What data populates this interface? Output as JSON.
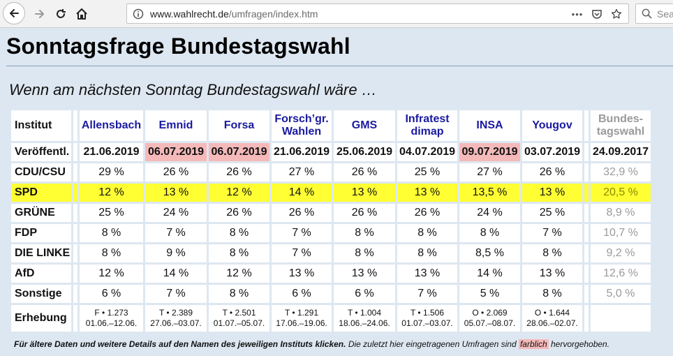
{
  "browser": {
    "url_host": "www.wahlrecht.de",
    "url_path": "/umfragen/index.htm",
    "search_placeholder": "Sea",
    "more_label": "•••"
  },
  "page": {
    "title": "Sonntagsfrage Bundestagswahl",
    "subtitle": "Wenn am nächsten Sonntag Bundestagswahl wäre …"
  },
  "table": {
    "header_label": "Institut",
    "institutes": [
      {
        "name_line1": "Allensbach",
        "name_line2": ""
      },
      {
        "name_line1": "Emnid",
        "name_line2": ""
      },
      {
        "name_line1": "Forsa",
        "name_line2": ""
      },
      {
        "name_line1": "Forsch’gr.",
        "name_line2": "Wahlen"
      },
      {
        "name_line1": "GMS",
        "name_line2": ""
      },
      {
        "name_line1": "Infratest",
        "name_line2": "dimap"
      },
      {
        "name_line1": "INSA",
        "name_line2": ""
      },
      {
        "name_line1": "Yougov",
        "name_line2": ""
      }
    ],
    "bundestagswahl_line1": "Bundes-",
    "bundestagswahl_line2": "tagswahl",
    "published_label": "Veröffentl.",
    "published_dates": [
      "21.06.2019",
      "06.07.2019",
      "06.07.2019",
      "21.06.2019",
      "25.06.2019",
      "04.07.2019",
      "09.07.2019",
      "03.07.2019"
    ],
    "published_highlight": [
      false,
      true,
      true,
      false,
      false,
      false,
      true,
      false
    ],
    "election_date": "24.09.2017",
    "parties": [
      {
        "name": "CDU/CSU",
        "values": [
          "29 %",
          "26 %",
          "26 %",
          "27 %",
          "26 %",
          "25 %",
          "27 %",
          "26 %"
        ],
        "election": "32,9 %"
      },
      {
        "name": "SPD",
        "values": [
          "12 %",
          "13 %",
          "12 %",
          "14 %",
          "13 %",
          "13 %",
          "13,5 %",
          "13 %"
        ],
        "election": "20,5 %"
      },
      {
        "name": "GRÜNE",
        "values": [
          "25 %",
          "24 %",
          "26 %",
          "26 %",
          "26 %",
          "26 %",
          "24 %",
          "25 %"
        ],
        "election": "8,9 %"
      },
      {
        "name": "FDP",
        "values": [
          "8 %",
          "7 %",
          "8 %",
          "7 %",
          "8 %",
          "8 %",
          "8 %",
          "7 %"
        ],
        "election": "10,7 %"
      },
      {
        "name": "DIE LINKE",
        "values": [
          "8 %",
          "9 %",
          "8 %",
          "7 %",
          "8 %",
          "8 %",
          "8,5 %",
          "8 %"
        ],
        "election": "9,2 %"
      },
      {
        "name": "AfD",
        "values": [
          "12 %",
          "14 %",
          "12 %",
          "13 %",
          "13 %",
          "13 %",
          "14 %",
          "13 %"
        ],
        "election": "12,6 %"
      },
      {
        "name": "Sonstige",
        "values": [
          "6 %",
          "7 %",
          "8 %",
          "6 %",
          "6 %",
          "7 %",
          "5 %",
          "8 %"
        ],
        "election": "5,0 %"
      }
    ],
    "survey_label": "Erhebung",
    "surveys": [
      {
        "line1": "F • 1.273",
        "line2": "01.06.–12.06."
      },
      {
        "line1": "T • 2.389",
        "line2": "27.06.–03.07."
      },
      {
        "line1": "T • 2.501",
        "line2": "01.07.–05.07."
      },
      {
        "line1": "T • 1.291",
        "line2": "17.06.–19.06."
      },
      {
        "line1": "T • 1.004",
        "line2": "18.06.–24.06."
      },
      {
        "line1": "T • 1.506",
        "line2": "01.07.–03.07."
      },
      {
        "line1": "O • 2.069",
        "line2": "05.07.–08.07."
      },
      {
        "line1": "O • 1.644",
        "line2": "28.06.–02.07."
      }
    ]
  },
  "footnote": {
    "bold_text": "Für ältere Daten und weitere Details auf den Namen des jeweiligen Instituts klicken.",
    "text_before": "Die zuletzt hier eingetragenen Umfragen sind",
    "marked_word": "farblich",
    "text_after": "hervorgehoben."
  },
  "colors": {
    "highlight_recent": "#f5b9b9",
    "spd_row": "#ffff33",
    "institute_link": "#1a1aa0",
    "page_background": "#dde7f1"
  }
}
